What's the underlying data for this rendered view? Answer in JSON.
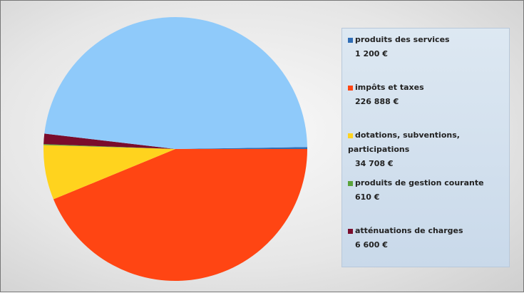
{
  "chart_data": {
    "type": "pie",
    "categories": [
      "produits des services",
      "impôts et  taxes",
      "dotations,   subventions, participations",
      "produits de gestion      courante",
      "atténuations de charges",
      null
    ],
    "values": [
      1200,
      226888,
      34708,
      610,
      6600,
      248300
    ],
    "value_labels": [
      "1 200 €",
      "226 888 €",
      "34 708 €",
      "610 €",
      "6 600 €",
      null
    ],
    "colors": [
      "#2f6db5",
      "#ff4513",
      "#ffd31e",
      "#5ba33b",
      "#7a0c2c",
      "#8fcafa"
    ],
    "legend": "right"
  }
}
